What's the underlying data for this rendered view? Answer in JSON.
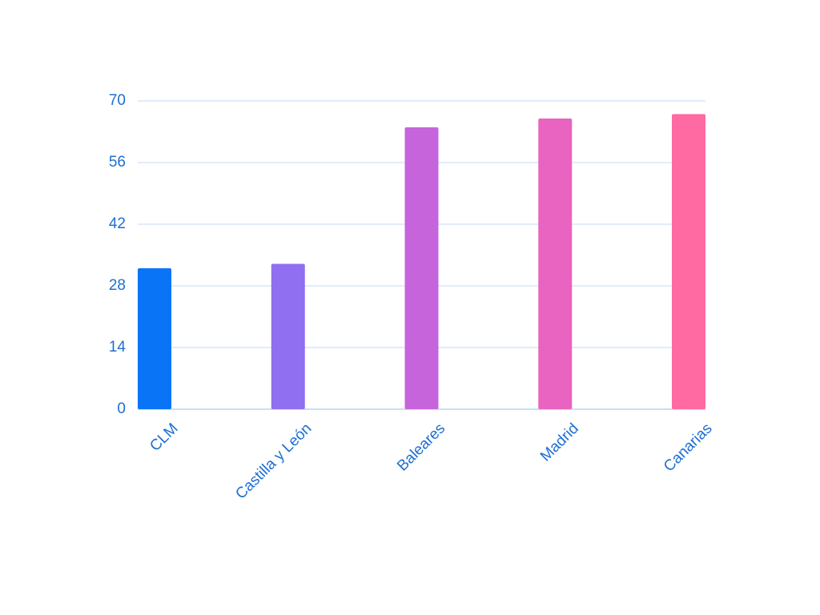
{
  "chart_data": {
    "type": "bar",
    "categories": [
      "CLM",
      "Castilla y León",
      "Baleares",
      "Madrid",
      "Canarias"
    ],
    "values": [
      32,
      33,
      64,
      66,
      67
    ],
    "yticks": [
      0,
      14,
      28,
      42,
      56,
      70
    ],
    "ylim": [
      0,
      70
    ],
    "title": "",
    "xlabel": "",
    "ylabel": "",
    "grid": true,
    "legend": "none",
    "colors": {
      "bars": [
        "#0a74f7",
        "#906ff0",
        "#c664dc",
        "#e963c0",
        "#ff6aa3"
      ],
      "text": "#1d6fd2",
      "grid": "#cfe2f6",
      "axis": "#b9d4f0"
    }
  }
}
